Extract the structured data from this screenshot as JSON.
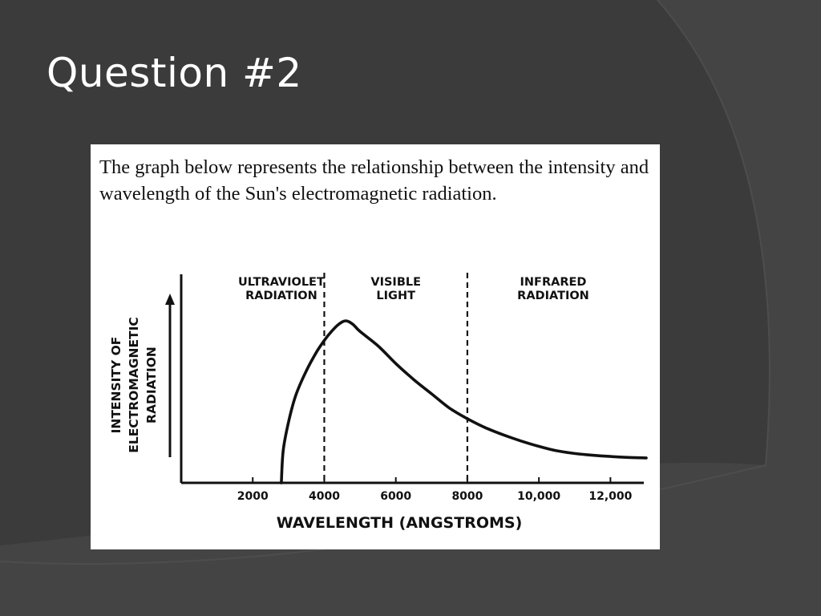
{
  "slide": {
    "title": "Question #2",
    "question_text": "The graph below represents the relationship between the intensity and wavelength of the Sun's electromagnetic radiation."
  },
  "colors": {
    "background": "#3b3b3b",
    "background_shade": "#434343",
    "panel": "#ffffff",
    "ink": "#111111"
  },
  "chart_data": {
    "type": "line",
    "title": "",
    "xlabel": "WAVELENGTH  (ANGSTROMS)",
    "ylabel_lines": [
      "INTENSITY   OF",
      "ELECTROMAGNETIC",
      "RADIATION"
    ],
    "xlim": [
      0,
      13000
    ],
    "ylim": [
      0,
      100
    ],
    "y_axis_arrow": true,
    "grid": false,
    "x_ticks": [
      {
        "value": 2000,
        "label": "2000"
      },
      {
        "value": 4000,
        "label": "4000"
      },
      {
        "value": 6000,
        "label": "6000"
      },
      {
        "value": 8000,
        "label": "8000"
      },
      {
        "value": 10000,
        "label": "10,000"
      },
      {
        "value": 12000,
        "label": "12,000"
      }
    ],
    "dividers": [
      4000,
      8000
    ],
    "regions": [
      {
        "x_center": 2800,
        "lines": [
          "ULTRAVIOLET",
          "RADIATION"
        ]
      },
      {
        "x_center": 6000,
        "lines": [
          "VISIBLE",
          "LIGHT"
        ]
      },
      {
        "x_center": 10400,
        "lines": [
          "INFRARED",
          "RADIATION"
        ]
      }
    ],
    "series": [
      {
        "x": [
          2800,
          2850,
          3000,
          3200,
          3500,
          3800,
          4000,
          4200,
          4400,
          4600,
          4800,
          5000,
          5500,
          6000,
          6500,
          7000,
          7500,
          8000,
          8500,
          9000,
          9500,
          10000,
          10500,
          11000,
          11500,
          12000,
          12500,
          13000
        ],
        "y": [
          0,
          18,
          34,
          49,
          63,
          74,
          80,
          85,
          89,
          91,
          89,
          85,
          77,
          67,
          58,
          50,
          42,
          36,
          31,
          27,
          23.5,
          20.5,
          18,
          16.5,
          15.5,
          14.8,
          14.3,
          14
        ]
      }
    ]
  }
}
